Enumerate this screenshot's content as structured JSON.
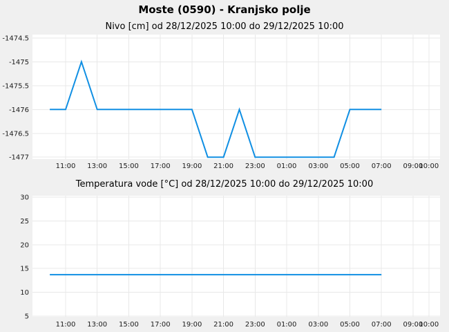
{
  "page": {
    "title": "Moste (0590) - Kranjsko polje",
    "background_color": "#f0f0f0"
  },
  "style": {
    "plot_bg": "#ffffff",
    "grid_color": "#e8e8e8",
    "tick_color": "#1a1a1a",
    "tick_font_size": 10,
    "line_width": 2
  },
  "chart_data": [
    {
      "type": "line",
      "title": "Nivo [cm] od 28/12/2025 10:00 do 29/12/2025 10:00",
      "series_name": "Nivo [cm]",
      "period_from": "28/12/2025 10:00",
      "period_to": "29/12/2025 10:00",
      "line_color": "#108fe3",
      "grid": true,
      "legend": "none",
      "point_times": [
        "10:00",
        "11:00",
        "12:00",
        "13:00",
        "14:00",
        "15:00",
        "16:00",
        "17:00",
        "18:00",
        "19:00",
        "20:00",
        "21:00",
        "22:00",
        "23:00",
        "00:00",
        "01:00",
        "02:00",
        "03:00",
        "04:00",
        "05:00",
        "06:00",
        "07:00"
      ],
      "x": [
        0,
        1,
        2,
        3,
        4,
        5,
        6,
        7,
        8,
        9,
        10,
        11,
        12,
        13,
        14,
        15,
        16,
        17,
        18,
        19,
        20,
        21
      ],
      "values": [
        -1476,
        -1476,
        -1475,
        -1476,
        -1476,
        -1476,
        -1476,
        -1476,
        -1476,
        -1476,
        -1477,
        -1477,
        -1476,
        -1477,
        -1477,
        -1477,
        -1477,
        -1477,
        -1477,
        -1476,
        -1476,
        -1476
      ],
      "y_ticks": [
        -1474.5,
        -1475,
        -1475.5,
        -1476,
        -1476.5,
        -1477
      ],
      "y_tick_labels": [
        "-1474.5",
        "-1475",
        "-1475.5",
        "-1476",
        "-1476.5",
        "-1477"
      ],
      "x_tick_hours": [
        1,
        3,
        5,
        7,
        9,
        11,
        13,
        15,
        17,
        19,
        21,
        23,
        24
      ],
      "x_tick_labels": [
        "11:00",
        "13:00",
        "15:00",
        "17:00",
        "19:00",
        "21:00",
        "23:00",
        "01:00",
        "03:00",
        "05:00",
        "07:00",
        "09:00",
        "10:00"
      ],
      "xlim": [
        -1.1,
        24.71
      ],
      "ylim": [
        -1477.04,
        -1474.43
      ]
    },
    {
      "type": "line",
      "title": "Temperatura vode [°C] od 28/12/2025 10:00 do 29/12/2025 10:00",
      "series_name": "Temperatura vode [°C]",
      "period_from": "28/12/2025 10:00",
      "period_to": "29/12/2025 10:00",
      "line_color": "#108fe3",
      "grid": true,
      "legend": "none",
      "point_times": [
        "10:00",
        "11:00",
        "12:00",
        "13:00",
        "14:00",
        "15:00",
        "16:00",
        "17:00",
        "18:00",
        "19:00",
        "20:00",
        "21:00",
        "22:00",
        "23:00",
        "00:00",
        "01:00",
        "02:00",
        "03:00",
        "04:00",
        "05:00",
        "06:00",
        "07:00"
      ],
      "x": [
        0,
        1,
        2,
        3,
        4,
        5,
        6,
        7,
        8,
        9,
        10,
        11,
        12,
        13,
        14,
        15,
        16,
        17,
        18,
        19,
        20,
        21
      ],
      "values": [
        13.7,
        13.7,
        13.7,
        13.7,
        13.7,
        13.7,
        13.7,
        13.7,
        13.7,
        13.7,
        13.7,
        13.7,
        13.7,
        13.7,
        13.7,
        13.7,
        13.7,
        13.7,
        13.7,
        13.7,
        13.7,
        13.7
      ],
      "y_ticks": [
        30,
        25,
        20,
        15,
        10,
        5
      ],
      "y_tick_labels": [
        "30",
        "25",
        "20",
        "15",
        "10",
        "5"
      ],
      "x_tick_hours": [
        1,
        3,
        5,
        7,
        9,
        11,
        13,
        15,
        17,
        19,
        21,
        23,
        24
      ],
      "x_tick_labels": [
        "11:00",
        "13:00",
        "15:00",
        "17:00",
        "19:00",
        "21:00",
        "23:00",
        "01:00",
        "03:00",
        "05:00",
        "07:00",
        "09:00",
        "10:00"
      ],
      "xlim": [
        -1.1,
        24.71
      ],
      "ylim": [
        4.85,
        30.3
      ]
    }
  ]
}
